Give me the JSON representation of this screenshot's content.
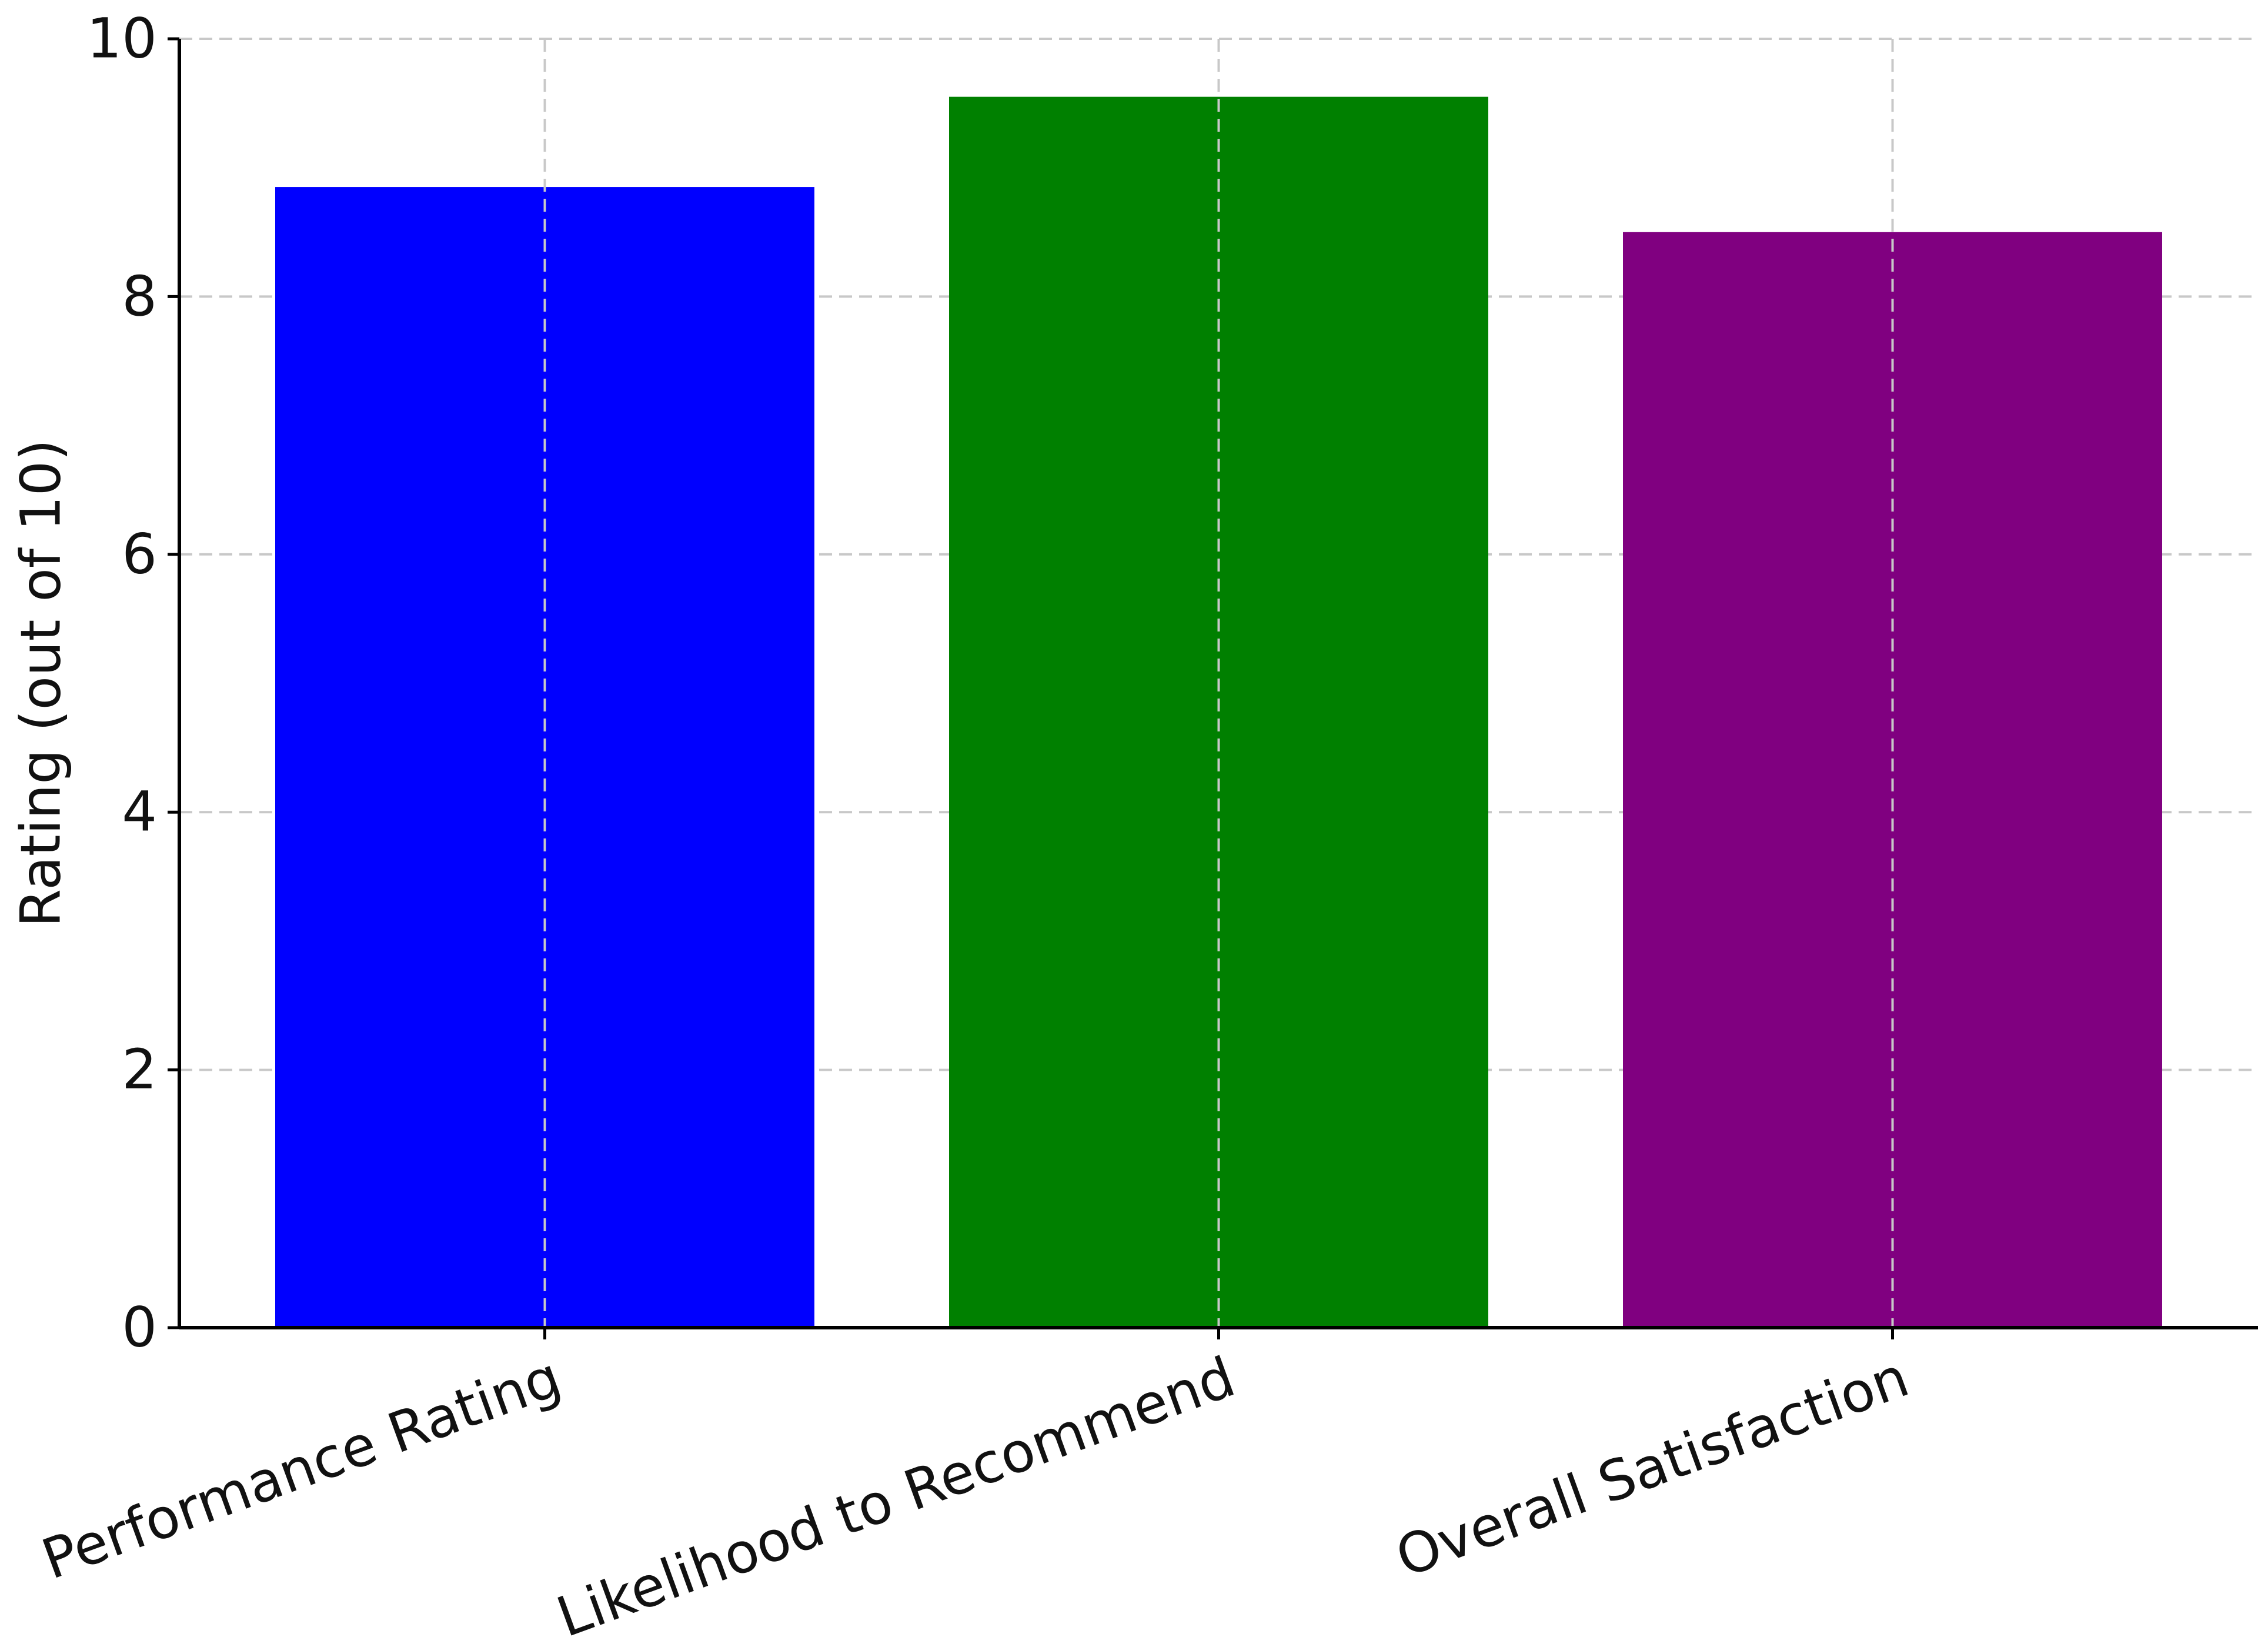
{
  "chart_data": {
    "type": "bar",
    "title": "",
    "xlabel": "",
    "ylabel": "Rating (out of 10)",
    "categories": [
      "Performance Rating",
      "Likelihood to Recommend",
      "Overall Satisfaction"
    ],
    "values": [
      8.85,
      9.55,
      8.5
    ],
    "colors": [
      "#0000ff",
      "#008000",
      "#800080"
    ],
    "ylim": [
      0,
      10
    ],
    "yticks": [
      0,
      2,
      4,
      6,
      8,
      10
    ],
    "grid": true,
    "legend": "none"
  }
}
